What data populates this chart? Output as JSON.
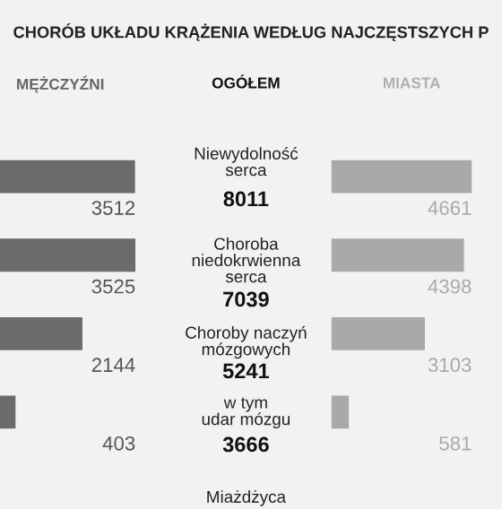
{
  "chart_data": [
    {
      "type": "other",
      "title": "CHORÓB UKŁADU KRĄŻENIA WEDŁUG NAJCZĘSTSZYCH P"
    },
    {
      "type": "bar",
      "title": "MĘŻCZYŹNI",
      "orientation": "horizontal",
      "categories": [
        null,
        null,
        null,
        null
      ],
      "values": [
        3512,
        3525,
        2144,
        403
      ],
      "color": "#6b6b6b",
      "data_labels": true
    },
    {
      "type": "other",
      "title": "OGÓŁEM",
      "annotations": [
        "Niewydolność\nserca",
        "8011",
        "Choroba\nniedokrwienna\nserca",
        "7039",
        "Choroby naczyń\nmózgowych",
        "5241",
        "w tym\nudar mózgu",
        "3666",
        "Miażdżyca"
      ]
    },
    {
      "type": "bar",
      "title": "MIASTA",
      "orientation": "horizontal",
      "categories": [
        null,
        null,
        null,
        null
      ],
      "values": [
        4661,
        4398,
        3103,
        581
      ],
      "color": "#a9a9a9",
      "data_labels": true
    }
  ]
}
